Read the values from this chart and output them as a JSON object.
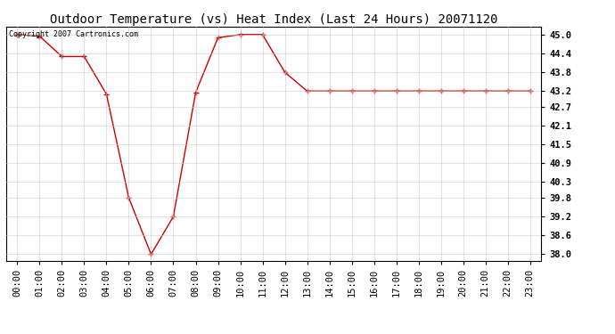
{
  "title": "Outdoor Temperature (vs) Heat Index (Last 24 Hours) 20071120",
  "copyright_text": "Copyright 2007 Cartronics.com",
  "x_labels": [
    "00:00",
    "01:00",
    "02:00",
    "03:00",
    "04:00",
    "05:00",
    "06:00",
    "07:00",
    "08:00",
    "09:00",
    "10:00",
    "11:00",
    "12:00",
    "13:00",
    "14:00",
    "15:00",
    "16:00",
    "17:00",
    "18:00",
    "19:00",
    "20:00",
    "21:00",
    "22:00",
    "23:00"
  ],
  "y_values": [
    45.0,
    44.95,
    44.3,
    44.3,
    43.1,
    39.8,
    38.0,
    39.2,
    43.15,
    44.9,
    45.0,
    45.0,
    43.8,
    43.2,
    43.2,
    43.2,
    43.2,
    43.2,
    43.2,
    43.2,
    43.2,
    43.2,
    43.2,
    43.2
  ],
  "y_min": 37.8,
  "y_max": 45.25,
  "y_ticks": [
    38.0,
    38.6,
    39.2,
    39.8,
    40.3,
    40.9,
    41.5,
    42.1,
    42.7,
    43.2,
    43.8,
    44.4,
    45.0
  ],
  "y_tick_labels": [
    "38.0",
    "38.6",
    "39.2",
    "39.8",
    "40.3",
    "40.9",
    "41.5",
    "42.1",
    "42.7",
    "43.2",
    "43.8",
    "44.4",
    "45.0"
  ],
  "line_color": "#CC0000",
  "marker": "+",
  "background_color": "#ffffff",
  "plot_bg_color": "#ffffff",
  "grid_color": "#cccccc",
  "title_fontsize": 10,
  "tick_fontsize": 7.5,
  "copyright_fontsize": 6
}
